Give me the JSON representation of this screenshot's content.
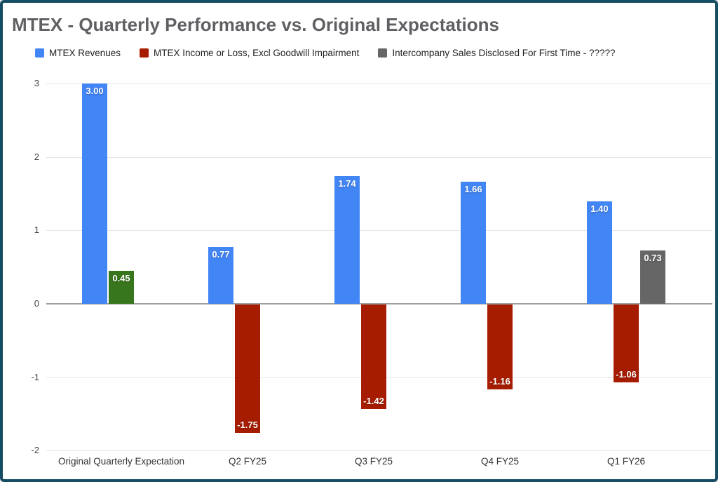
{
  "chart": {
    "title": "MTEX - Quarterly Performance vs. Original Expectations"
  },
  "chart_data": {
    "type": "bar",
    "title": "MTEX - Quarterly Performance vs. Original Expectations",
    "categories": [
      "Original Quarterly Expectation",
      "Q2 FY25",
      "Q3 FY25",
      "Q4 FY25",
      "Q1 FY26"
    ],
    "series": [
      {
        "name": "MTEX Revenues",
        "color": "#4285f4",
        "values": [
          3.0,
          0.77,
          1.74,
          1.66,
          1.4
        ]
      },
      {
        "name": "MTEX Income or Loss, Excl Goodwill Impairment",
        "color": "#a61c00",
        "values": [
          0.45,
          -1.75,
          -1.42,
          -1.16,
          -1.06
        ],
        "point_colors": [
          "#38761d",
          null,
          null,
          null,
          null
        ]
      },
      {
        "name": "Intercompany Sales Disclosed For First Time - ?????",
        "color": "#666666",
        "values": [
          null,
          null,
          null,
          null,
          0.73
        ]
      }
    ],
    "value_labels": true,
    "label_format_decimals": 2,
    "ylim": [
      -2,
      3
    ],
    "yticks": [
      3,
      2,
      1,
      0,
      -1,
      -2
    ],
    "xlabel": "",
    "ylabel": "",
    "grid": true,
    "legend_position": "top",
    "background_color": "#ffffff",
    "border_color": "#174d63",
    "title_color": "#5f6063",
    "axis_line_color": "#9e9e9e",
    "gridline_color": "#e6e6e6"
  }
}
